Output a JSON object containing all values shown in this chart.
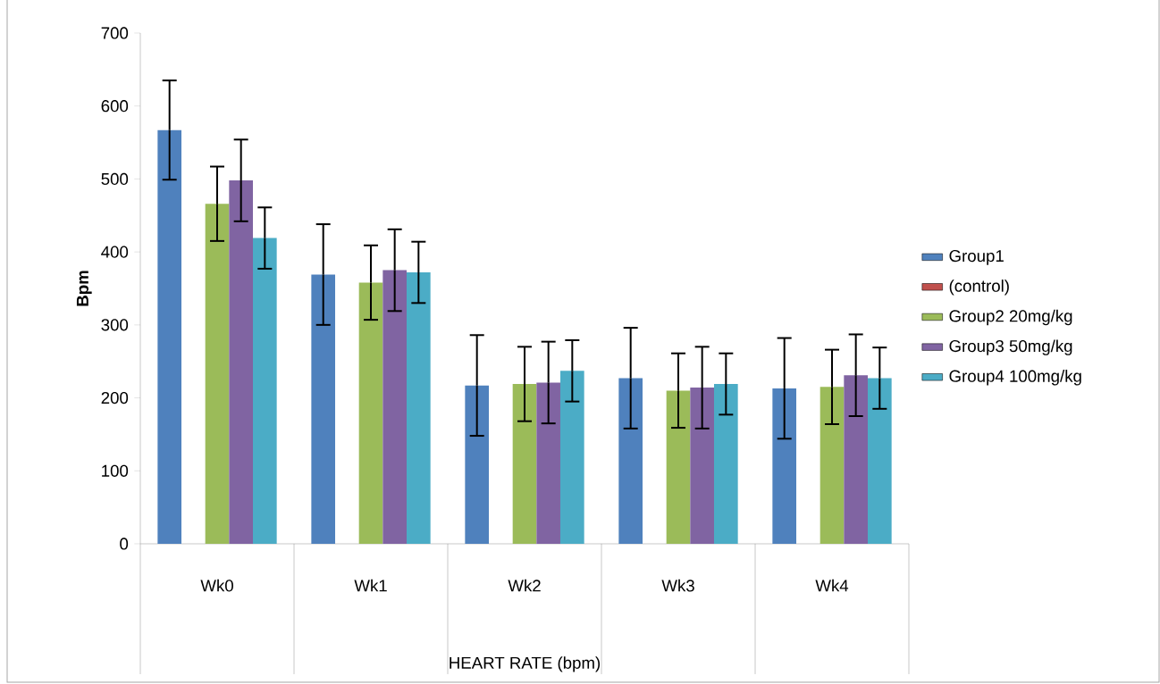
{
  "chart_data": {
    "type": "bar",
    "xlabel": "HEART RATE (bpm)",
    "ylabel": "Bpm",
    "categories": [
      "Wk0",
      "Wk1",
      "Wk2",
      "Wk3",
      "Wk4"
    ],
    "series": [
      {
        "name": "Group1",
        "color": "#4f81bd",
        "values": [
          567,
          369,
          217,
          227,
          213
        ],
        "errors": [
          68,
          69,
          69,
          69,
          69
        ]
      },
      {
        "name": "(control)",
        "color": "#c0504d",
        "values": [
          null,
          null,
          null,
          null,
          null
        ]
      },
      {
        "name": "Group2 20mg/kg",
        "color": "#9bbb59",
        "values": [
          466,
          358,
          219,
          210,
          215
        ],
        "errors": [
          51,
          51,
          51,
          51,
          51
        ]
      },
      {
        "name": "Group3 50mg/kg",
        "color": "#8064a2",
        "values": [
          498,
          375,
          221,
          214,
          231
        ],
        "errors": [
          56,
          56,
          56,
          56,
          56
        ]
      },
      {
        "name": "Group4 100mg/kg",
        "color": "#4bacc6",
        "values": [
          419,
          372,
          237,
          219,
          227
        ],
        "errors": [
          42,
          42,
          42,
          42,
          42
        ]
      }
    ],
    "ylim": [
      0,
      700
    ],
    "yticks": [
      0,
      100,
      200,
      300,
      400,
      500,
      600,
      700
    ],
    "legend": "right"
  }
}
